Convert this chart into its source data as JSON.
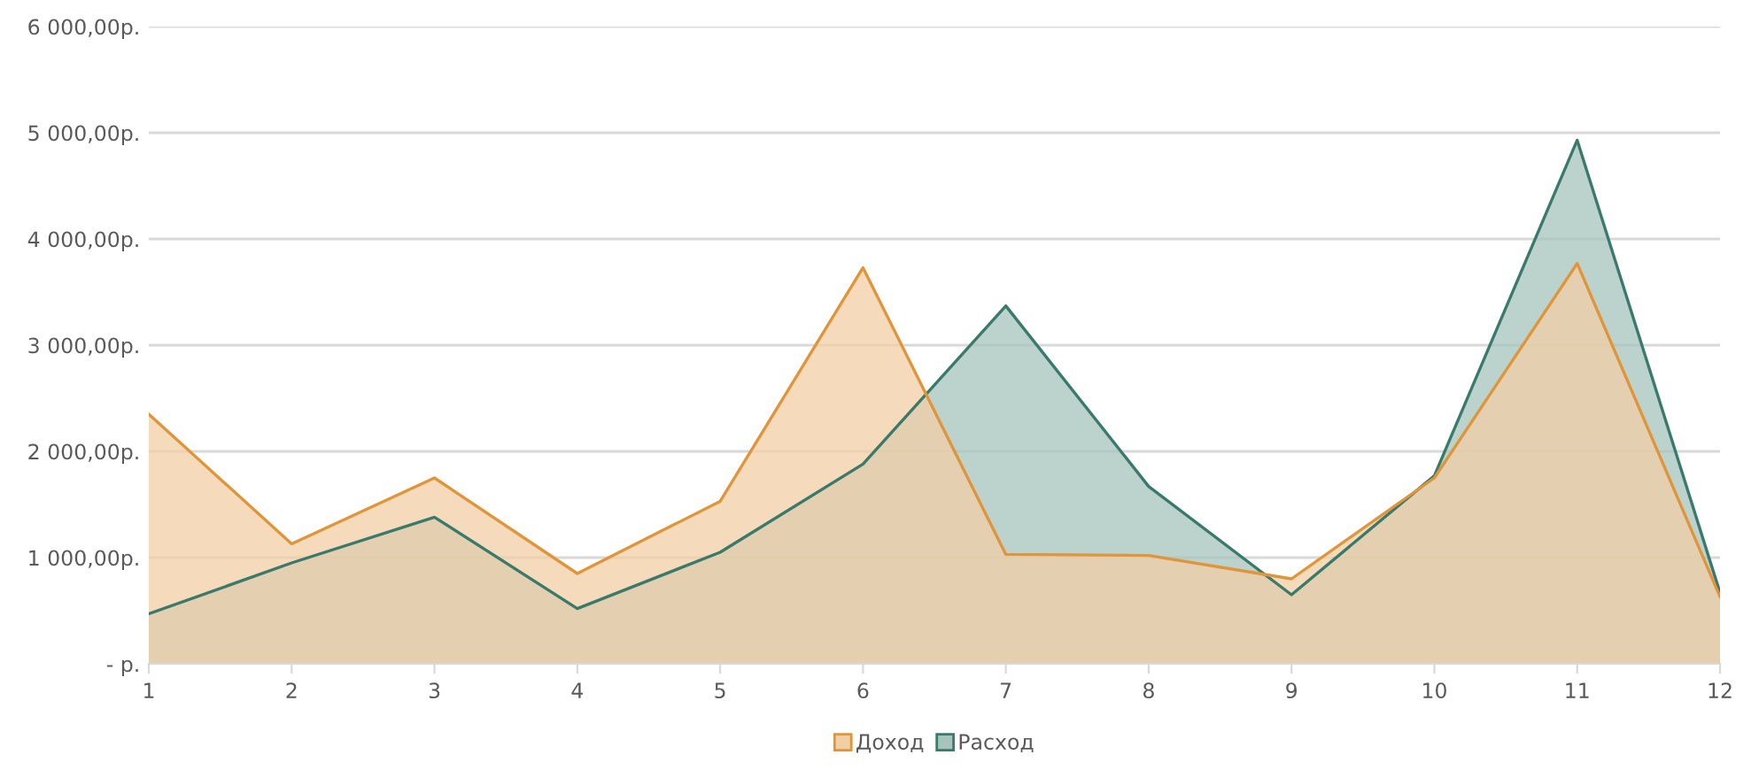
{
  "chart_data": {
    "type": "area",
    "categories": [
      "1",
      "2",
      "3",
      "4",
      "5",
      "6",
      "7",
      "8",
      "9",
      "10",
      "11",
      "12"
    ],
    "series": [
      {
        "name": "Расход",
        "color": "#3a7a6a",
        "values": [
          470,
          950,
          1380,
          520,
          1050,
          1880,
          3370,
          1670,
          650,
          1770,
          4930,
          670
        ]
      },
      {
        "name": "Доход",
        "color": "#e0953a",
        "values": [
          2350,
          1130,
          1750,
          850,
          1530,
          3730,
          1030,
          1020,
          800,
          1750,
          3770,
          630
        ]
      }
    ],
    "ylim": [
      0,
      6000
    ],
    "yticks": [
      {
        "value": 0,
        "label": "- р."
      },
      {
        "value": 1000,
        "label": "1 000,00р."
      },
      {
        "value": 2000,
        "label": "2 000,00р."
      },
      {
        "value": 3000,
        "label": "3 000,00р."
      },
      {
        "value": 4000,
        "label": "4 000,00р."
      },
      {
        "value": 5000,
        "label": "5 000,00р."
      },
      {
        "value": 6000,
        "label": "6 000,00р."
      }
    ],
    "grid": "y",
    "legend": "bottom"
  }
}
